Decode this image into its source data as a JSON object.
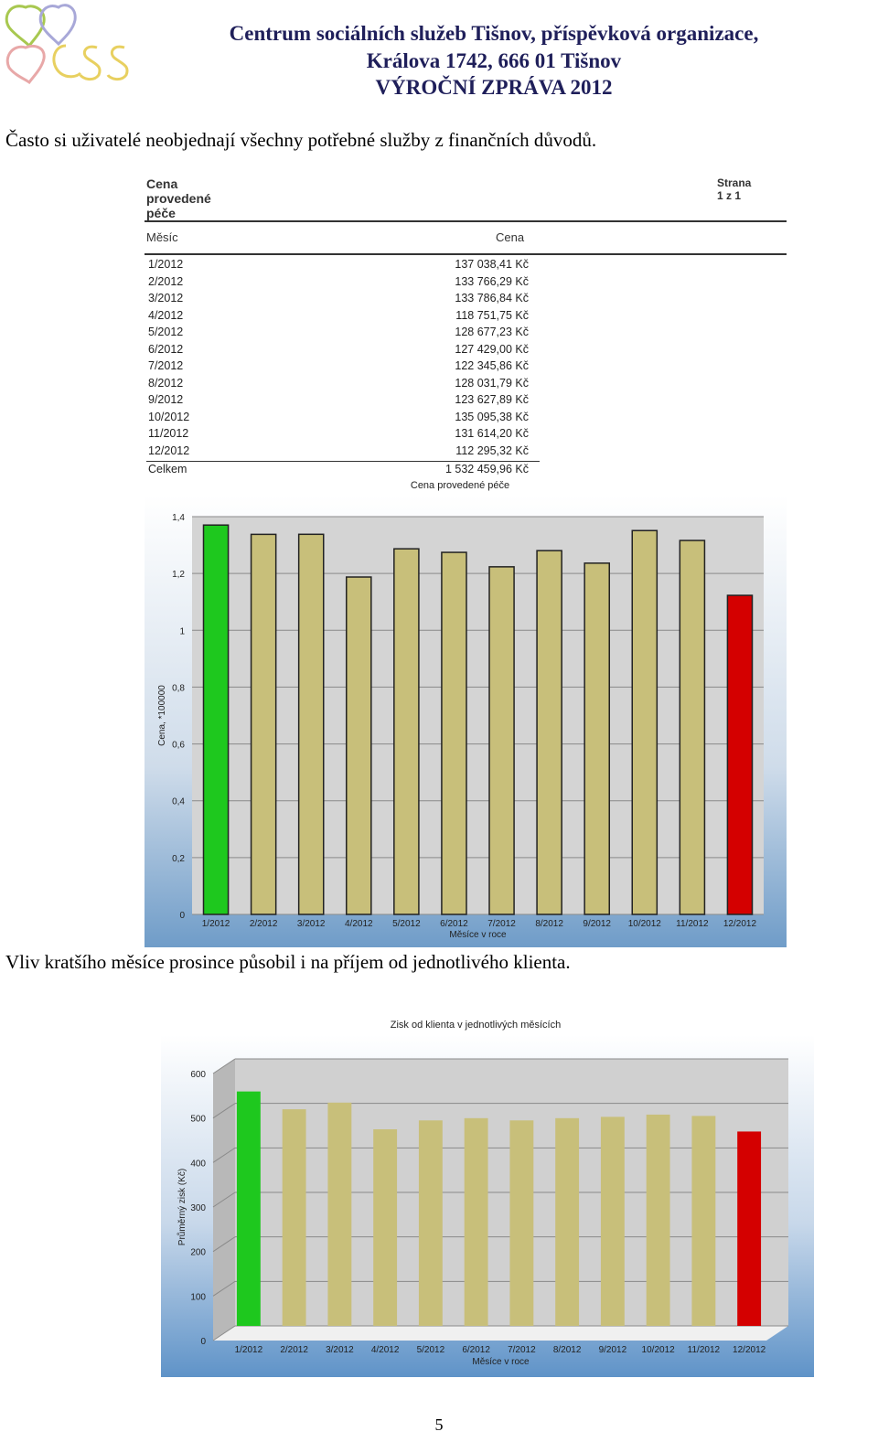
{
  "header": {
    "line1": "Centrum sociálních služeb Tišnov, příspěvková organizace,",
    "line2": "Králova 1742, 666 01  Tišnov",
    "line3": "VÝROČNÍ ZPRÁVA 2012"
  },
  "paragraph1": "Často si uživatelé neobjednají všechny potřebné služby z finančních důvodů.",
  "table": {
    "title": "Cena provedené péče",
    "page": "Strana 1 z 1",
    "col_month": "Měsíc",
    "col_price": "Cena",
    "rows": [
      {
        "month": "1/2012",
        "price": "137 038,41 Kč"
      },
      {
        "month": "2/2012",
        "price": "133 766,29 Kč"
      },
      {
        "month": "3/2012",
        "price": "133 786,84 Kč"
      },
      {
        "month": "4/2012",
        "price": "118 751,75 Kč"
      },
      {
        "month": "5/2012",
        "price": "128 677,23 Kč"
      },
      {
        "month": "6/2012",
        "price": "127 429,00 Kč"
      },
      {
        "month": "7/2012",
        "price": "122 345,86 Kč"
      },
      {
        "month": "8/2012",
        "price": "128 031,79 Kč"
      },
      {
        "month": "9/2012",
        "price": "123 627,89 Kč"
      },
      {
        "month": "10/2012",
        "price": "135 095,38 Kč"
      },
      {
        "month": "11/2012",
        "price": "131 614,20 Kč"
      },
      {
        "month": "12/2012",
        "price": "112 295,32 Kč"
      }
    ],
    "total_label": "Celkem",
    "total_value": "1 532 459,96 Kč"
  },
  "paragraph2": "Vliv kratšího měsíce prosince působil i na příjem od jednotlivého klienta.",
  "page_number": "5",
  "colors": {
    "max": "#1ec81e",
    "min": "#d40000",
    "normal": "#c8bf7a",
    "header": "#1f1f5a"
  },
  "chart_data": [
    {
      "type": "bar",
      "title": "Cena provedené péče",
      "xlabel": "Měsíce v roce",
      "ylabel": "Cena, *100000",
      "categories": [
        "1/2012",
        "2/2012",
        "3/2012",
        "4/2012",
        "5/2012",
        "6/2012",
        "7/2012",
        "8/2012",
        "9/2012",
        "10/2012",
        "11/2012",
        "12/2012"
      ],
      "values": [
        1.37038,
        1.33766,
        1.33787,
        1.18752,
        1.28677,
        1.27429,
        1.22346,
        1.28032,
        1.23628,
        1.35095,
        1.31614,
        1.12295
      ],
      "ylim": [
        0,
        1.4
      ],
      "yticks": [
        "0",
        "0,2",
        "0,4",
        "0,6",
        "0,8",
        "1",
        "1,2",
        "1,4"
      ],
      "grid": true
    },
    {
      "type": "bar",
      "title": "Zisk od klienta v jednotlivých měsících",
      "xlabel": "Měsíce v roce",
      "ylabel": "Průměrný zisk (Kč)",
      "categories": [
        "1/2012",
        "2/2012",
        "3/2012",
        "4/2012",
        "5/2012",
        "6/2012",
        "7/2012",
        "8/2012",
        "9/2012",
        "10/2012",
        "11/2012",
        "12/2012"
      ],
      "values": [
        535,
        495,
        510,
        450,
        470,
        475,
        470,
        475,
        478,
        483,
        480,
        445
      ],
      "ylim": [
        0,
        600
      ],
      "yticks": [
        "0",
        "100",
        "200",
        "300",
        "400",
        "500",
        "600"
      ],
      "grid": true
    }
  ]
}
